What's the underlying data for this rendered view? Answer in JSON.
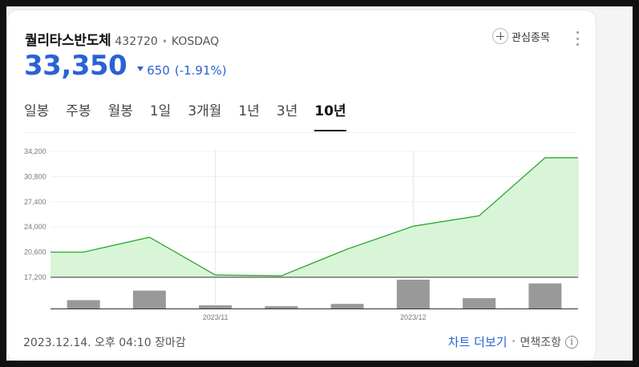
{
  "stock": {
    "name": "퀄리타스반도체",
    "code": "432720",
    "separator": "•",
    "market": "KOSDAQ",
    "price": "33,350",
    "change": "650",
    "change_pct": "(-1.91%)",
    "direction": "down"
  },
  "actions": {
    "favorite_label": "관심종목",
    "favorite_icon": "plus-circle-icon",
    "more_icon": "vertical-dots-icon"
  },
  "tabs": [
    {
      "label": "일봉",
      "active": false
    },
    {
      "label": "주봉",
      "active": false
    },
    {
      "label": "월봉",
      "active": false
    },
    {
      "label": "1일",
      "active": false
    },
    {
      "label": "3개월",
      "active": false
    },
    {
      "label": "1년",
      "active": false
    },
    {
      "label": "3년",
      "active": false
    },
    {
      "label": "10년",
      "active": true
    }
  ],
  "chart_data": {
    "type": "area",
    "y_ticks": [
      "34,200",
      "30,800",
      "27,400",
      "24,000",
      "20,600",
      "17,200"
    ],
    "ylim": [
      17200,
      34200
    ],
    "x_ticks": [
      {
        "label": "2023/11",
        "index": 2.5
      },
      {
        "label": "2023/12",
        "index": 5.5
      }
    ],
    "series": [
      {
        "values": [
          20600,
          22600,
          17500,
          17400,
          21000,
          24100,
          25500,
          33350
        ]
      }
    ],
    "volume": {
      "values": [
        0.29,
        0.62,
        0.11,
        0.08,
        0.16,
        1.0,
        0.36,
        0.87
      ]
    },
    "colors": {
      "line": "#2ea82e",
      "fill": "#d8f5d8",
      "volume": "#999999"
    }
  },
  "footer": {
    "datetime": "2023.12.14. 오후 04:10 장마감",
    "more_chart": "차트 더보기",
    "dot": "•",
    "disclaimer": "면책조항",
    "info_symbol": "i"
  }
}
